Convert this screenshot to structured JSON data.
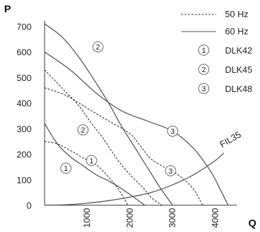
{
  "chart_data": {
    "type": "line",
    "ylabel": "P",
    "xlabel": "Q",
    "xlim": [
      0,
      4500
    ],
    "ylim": [
      0,
      720
    ],
    "x_ticks": [
      1000,
      2000,
      3000,
      4000
    ],
    "y_ticks": [
      0,
      100,
      200,
      300,
      400,
      500,
      600,
      700
    ],
    "line_styles": [
      {
        "style": "dashed",
        "label": "50 Hz"
      },
      {
        "style": "solid",
        "label": "60 Hz"
      }
    ],
    "models": [
      {
        "number": "1",
        "name": "DLK42"
      },
      {
        "number": "2",
        "name": "DLK45"
      },
      {
        "number": "3",
        "name": "DLK48"
      }
    ],
    "series": [
      {
        "model": "1",
        "frequency": "60 Hz",
        "style": "solid",
        "x": [
          0,
          300,
          600,
          900,
          1200,
          1500,
          1800,
          2100,
          2350
        ],
        "y": [
          320,
          240,
          190,
          155,
          120,
          95,
          65,
          30,
          0
        ]
      },
      {
        "model": "1",
        "frequency": "50 Hz",
        "style": "dashed",
        "x": [
          0,
          300,
          600,
          900,
          1200,
          1500,
          1700,
          1850,
          1950
        ],
        "y": [
          250,
          240,
          215,
          185,
          160,
          110,
          70,
          30,
          0
        ]
      },
      {
        "model": "2",
        "frequency": "60 Hz",
        "style": "solid",
        "x": [
          0,
          400,
          800,
          1200,
          1500,
          1800,
          2100,
          2400,
          2700,
          3000
        ],
        "y": [
          710,
          660,
          580,
          480,
          400,
          310,
          230,
          150,
          70,
          0
        ]
      },
      {
        "model": "2",
        "frequency": "50 Hz",
        "style": "dashed",
        "x": [
          0,
          400,
          800,
          1100,
          1400,
          1700,
          2000,
          2300,
          2500,
          2750
        ],
        "y": [
          530,
          460,
          390,
          320,
          255,
          180,
          120,
          70,
          30,
          0
        ]
      },
      {
        "model": "3",
        "frequency": "60 Hz",
        "style": "solid",
        "x": [
          0,
          600,
          1200,
          1800,
          2400,
          3000,
          3500,
          3900,
          4150,
          4300
        ],
        "y": [
          600,
          530,
          440,
          370,
          330,
          290,
          220,
          130,
          50,
          0
        ]
      },
      {
        "model": "3",
        "frequency": "50 Hz",
        "style": "dashed",
        "x": [
          0,
          500,
          1000,
          1500,
          2000,
          2300,
          2500,
          2900,
          3200,
          3500,
          3700
        ],
        "y": [
          460,
          430,
          380,
          330,
          280,
          220,
          180,
          140,
          110,
          60,
          0
        ]
      },
      {
        "model": "FIL35",
        "frequency": "",
        "style": "solid",
        "x": [
          0,
          500,
          1000,
          1500,
          2000,
          2500,
          3000,
          3500,
          4000,
          4200
        ],
        "y": [
          0,
          2,
          8,
          18,
          32,
          50,
          80,
          120,
          175,
          205
        ]
      }
    ],
    "curve_labels": [
      {
        "text": "1",
        "x": 1100,
        "y": 175
      },
      {
        "text": "1",
        "x": 500,
        "y": 145
      },
      {
        "text": "2",
        "x": 1250,
        "y": 620
      },
      {
        "text": "2",
        "x": 900,
        "y": 295
      },
      {
        "text": "3",
        "x": 3000,
        "y": 290
      },
      {
        "text": "3",
        "x": 2950,
        "y": 135
      },
      {
        "text": "FIL35",
        "x": 4350,
        "y": 225
      }
    ]
  }
}
